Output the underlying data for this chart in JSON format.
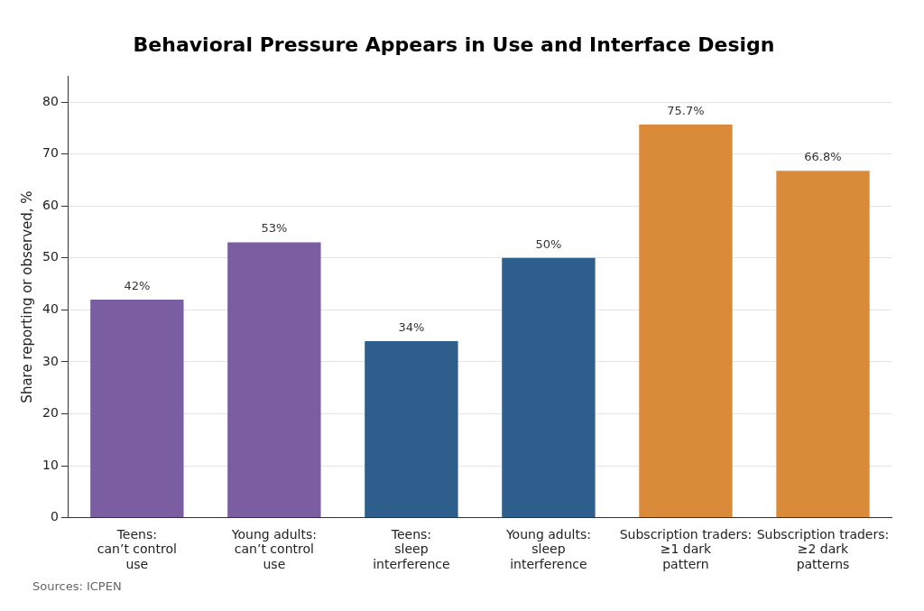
{
  "chart_data": {
    "type": "bar",
    "title": "Behavioral Pressure Appears in Use and Interface Design",
    "ylabel": "Share reporting or observed, %",
    "categories": [
      "Teens:\ncan’t control\nuse",
      "Young adults:\ncan’t control\nuse",
      "Teens:\nsleep\ninterference",
      "Young adults:\nsleep\ninterference",
      "Subscription traders:\n≥1 dark\npattern",
      "Subscription traders:\n≥2 dark\npatterns"
    ],
    "values": [
      42,
      53,
      34,
      50,
      75.7,
      66.8
    ],
    "value_labels": [
      "42%",
      "53%",
      "34%",
      "50%",
      "75.7%",
      "66.8%"
    ],
    "colors": [
      "#7b5ea2",
      "#7b5ea2",
      "#2e5e8c",
      "#2e5e8c",
      "#d98b3a",
      "#d98b3a"
    ],
    "ylim": [
      0,
      85
    ],
    "yticks": [
      0,
      10,
      20,
      30,
      40,
      50,
      60,
      70,
      80
    ],
    "grid": "y",
    "legend": false,
    "annotations": [
      "Sources: ICPEN"
    ]
  }
}
